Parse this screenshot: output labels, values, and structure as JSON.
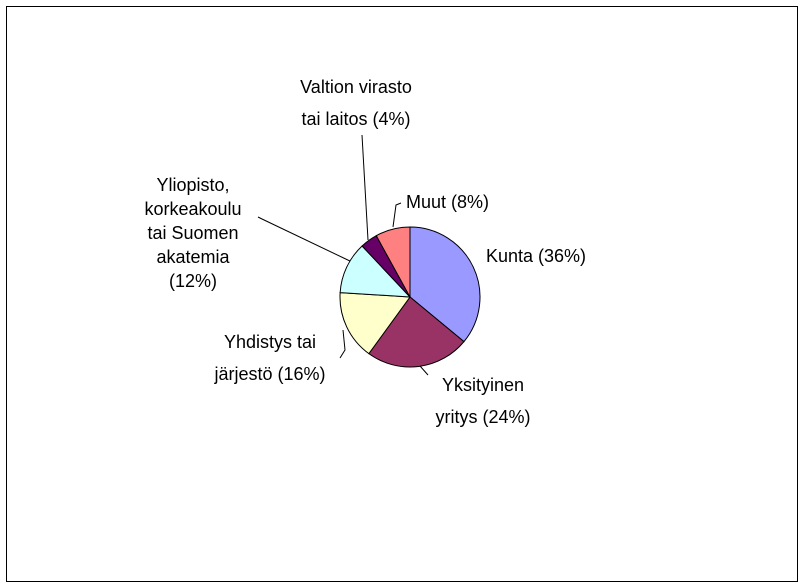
{
  "chart_data": {
    "type": "pie",
    "values": [
      36,
      24,
      16,
      12,
      4,
      8
    ],
    "value_labels": [
      "Kunta (36%)",
      "Yksityinen\nyritys (24%)",
      "Yhdistys tai\njärjestö (16%)",
      "Yliopisto,\nkorkeakoulu\ntai Suomen\nakatemia\n(12%)",
      "Valtion virasto\ntai laitos (4%)",
      "Muut (8%)"
    ],
    "colors": [
      "#9999ff",
      "#993366",
      "#ffffcc",
      "#ccffff",
      "#660066",
      "#ff8080"
    ]
  }
}
